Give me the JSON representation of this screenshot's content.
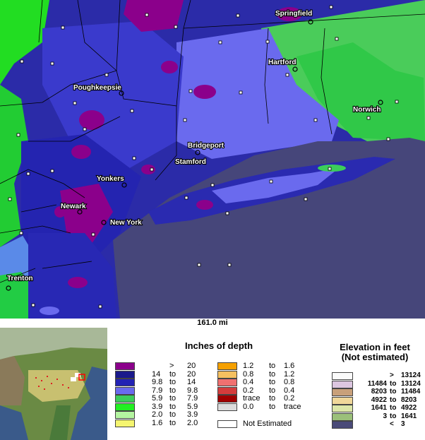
{
  "map": {
    "cities": [
      {
        "name": "Springfield"
      },
      {
        "name": "Hartford"
      },
      {
        "name": "Poughkeepsie"
      },
      {
        "name": "Norwich"
      },
      {
        "name": "Bridgeport"
      },
      {
        "name": "Stamford"
      },
      {
        "name": "Yonkers"
      },
      {
        "name": "Newark"
      },
      {
        "name": "New York"
      },
      {
        "name": "Trenton"
      }
    ],
    "scale_label": "161.0 mi"
  },
  "snow_legend": {
    "title": "Inches of depth",
    "rows": [
      {
        "low": "",
        "sep": ">",
        "high": "20",
        "color": "#8b008b"
      },
      {
        "low": "14",
        "sep": "to",
        "high": "20",
        "color": "#1a1a8c"
      },
      {
        "low": "9.8",
        "sep": "to",
        "high": "14",
        "color": "#2323b4"
      },
      {
        "low": "7.9",
        "sep": "to",
        "high": "9.8",
        "color": "#6a6aee"
      },
      {
        "low": "5.9",
        "sep": "to",
        "high": "7.9",
        "color": "#3ccd5a"
      },
      {
        "low": "3.9",
        "sep": "to",
        "high": "5.9",
        "color": "#22f022"
      },
      {
        "low": "2.0",
        "sep": "to",
        "high": "3.9",
        "color": "#b4f5a0"
      },
      {
        "low": "1.6",
        "sep": "to",
        "high": "2.0",
        "color": "#f5f570"
      },
      {
        "low": "1.2",
        "sep": "to",
        "high": "1.6",
        "color": "#f5a000"
      },
      {
        "low": "0.8",
        "sep": "to",
        "high": "1.2",
        "color": "#f5c060"
      },
      {
        "low": "0.4",
        "sep": "to",
        "high": "0.8",
        "color": "#f07070"
      },
      {
        "low": "0.2",
        "sep": "to",
        "high": "0.4",
        "color": "#d43c3c"
      },
      {
        "low": "trace",
        "sep": "to",
        "high": "0.2",
        "color": "#a00000"
      },
      {
        "low": "0.0",
        "sep": "to",
        "high": "trace",
        "color": "#dcdcdc"
      }
    ],
    "not_estimated": {
      "label": "Not Estimated",
      "color": "#ffffff"
    }
  },
  "elev_legend": {
    "title1": "Elevation in feet",
    "title2": "(Not estimated)",
    "rows": [
      {
        "low": "",
        "sep": ">",
        "high": "13124",
        "color": "#fafafa"
      },
      {
        "low": "11484",
        "sep": "to",
        "high": "13124",
        "color": "#dcc6e0"
      },
      {
        "low": "8203",
        "sep": "to",
        "high": "11484",
        "color": "#c8a07a"
      },
      {
        "low": "4922",
        "sep": "to",
        "high": "8203",
        "color": "#f0d79a"
      },
      {
        "low": "1641",
        "sep": "to",
        "high": "4922",
        "color": "#dce6a8"
      },
      {
        "low": "3",
        "sep": "to",
        "high": "1641",
        "color": "#9bc07a"
      },
      {
        "low": "",
        "sep": "<",
        "high": "3",
        "color": "#4a4a78"
      }
    ]
  }
}
